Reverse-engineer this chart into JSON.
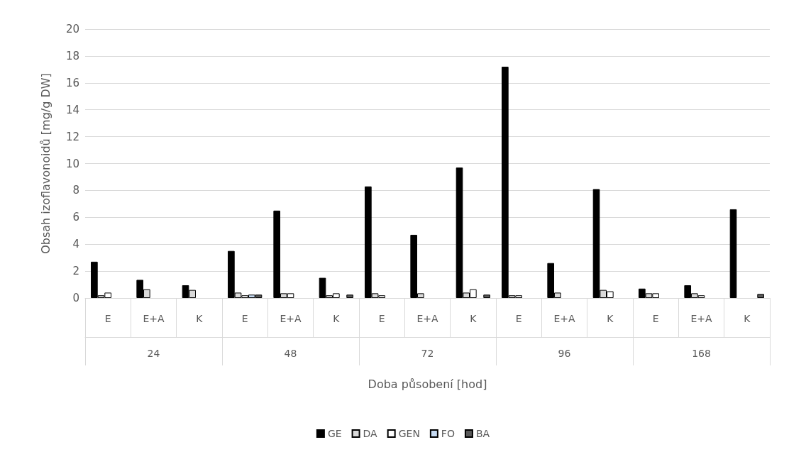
{
  "chart_data": {
    "type": "bar",
    "xlabel": "Doba působení [hod]",
    "ylabel": "Obsah izoflavonoidů [mg/g DW]",
    "categories": [
      "E",
      "E+A",
      "K",
      "E",
      "E+A",
      "K",
      "E",
      "E+A",
      "K",
      "E",
      "E+A",
      "K",
      "E",
      "E+A",
      "K"
    ],
    "annotations": [
      "24",
      "48",
      "72",
      "96",
      "168"
    ],
    "series": [
      {
        "name": "GE",
        "color": "#000000",
        "values": [
          2.7,
          1.35,
          0.95,
          3.5,
          6.5,
          1.5,
          8.3,
          4.7,
          9.7,
          17.2,
          2.6,
          8.1,
          0.7,
          0.95,
          6.6
        ]
      },
      {
        "name": "DA",
        "color": "#d9d9d9",
        "values": [
          0.2,
          0.65,
          0.6,
          0.4,
          0.35,
          0.2,
          0.35,
          0.35,
          0.4,
          0.2,
          0.4,
          0.6,
          0.35,
          0.35,
          null
        ]
      },
      {
        "name": "GEN",
        "color": "#ffffff",
        "values": [
          0.4,
          null,
          null,
          0.2,
          0.35,
          0.35,
          0.2,
          null,
          0.65,
          0.2,
          null,
          0.5,
          0.35,
          0.2,
          null
        ]
      },
      {
        "name": "FO",
        "color": "#c5d9f1",
        "values": [
          null,
          null,
          null,
          0.25,
          null,
          null,
          null,
          null,
          null,
          null,
          null,
          null,
          null,
          null,
          null
        ]
      },
      {
        "name": "BA",
        "color": "#595959",
        "values": [
          null,
          null,
          null,
          0.25,
          null,
          0.25,
          null,
          null,
          0.25,
          null,
          null,
          null,
          null,
          null,
          0.3
        ]
      }
    ],
    "ylim": [
      0,
      20
    ],
    "yticks": [
      0,
      2,
      4,
      6,
      8,
      10,
      12,
      14,
      16,
      18,
      20
    ],
    "grid": "y",
    "legend": "bottom"
  }
}
